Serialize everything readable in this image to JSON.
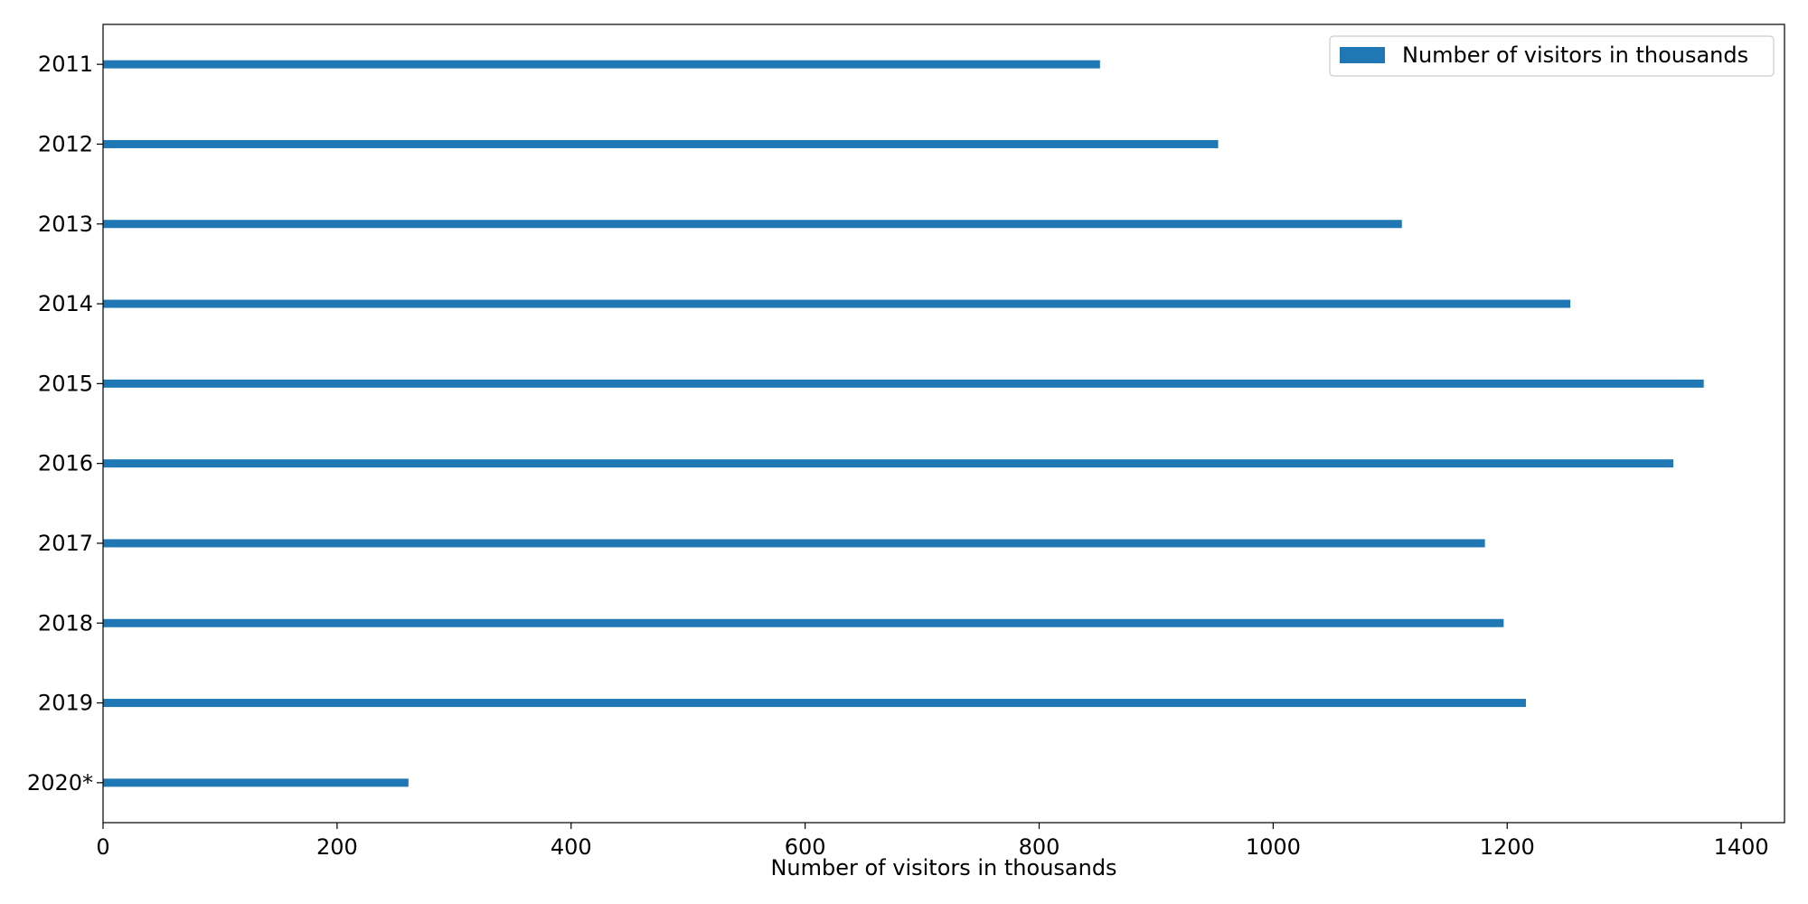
{
  "chart_data": {
    "type": "bar",
    "orientation": "horizontal",
    "categories": [
      "2011",
      "2012",
      "2013",
      "2014",
      "2015",
      "2016",
      "2017",
      "2018",
      "2019",
      "2020*"
    ],
    "series": [
      {
        "name": "Number of visitors in thousands",
        "values": [
          852,
          953,
          1110,
          1254,
          1368,
          1342,
          1181,
          1197,
          1216,
          261
        ],
        "color": "#1f77b4"
      }
    ],
    "xlabel": "Number of visitors in thousands",
    "ylabel": "",
    "xlim": [
      0,
      1437
    ],
    "xticks": [
      0,
      200,
      400,
      600,
      800,
      1000,
      1200,
      1400
    ],
    "grid": false,
    "legend_position": "top-right"
  }
}
